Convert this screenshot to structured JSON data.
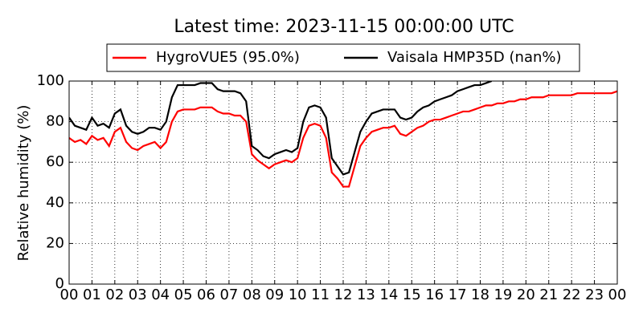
{
  "chart_data": {
    "type": "line",
    "title": "Latest time: 2023-11-15 00:00:00 UTC",
    "ylabel": "Relative humidity (%)",
    "x": [
      0,
      0.25,
      0.5,
      0.75,
      1,
      1.25,
      1.5,
      1.75,
      2,
      2.25,
      2.5,
      2.75,
      3,
      3.25,
      3.5,
      3.75,
      4,
      4.25,
      4.5,
      4.75,
      5,
      5.25,
      5.5,
      5.75,
      6,
      6.25,
      6.5,
      6.75,
      7,
      7.25,
      7.5,
      7.75,
      8,
      8.25,
      8.5,
      8.75,
      9,
      9.25,
      9.5,
      9.75,
      10,
      10.25,
      10.5,
      10.75,
      11,
      11.25,
      11.5,
      11.75,
      12,
      12.25,
      12.5,
      12.75,
      13,
      13.25,
      13.5,
      13.75,
      14,
      14.25,
      14.5,
      14.75,
      15,
      15.25,
      15.5,
      15.75,
      16,
      16.25,
      16.5,
      16.75,
      17,
      17.25,
      17.5,
      17.75,
      18,
      18.25,
      18.5,
      18.75,
      19,
      19.25,
      19.5,
      19.75,
      20,
      20.25,
      20.5,
      20.75,
      21,
      21.25,
      21.5,
      21.75,
      22,
      22.25,
      22.5,
      22.75,
      23,
      23.25,
      23.5,
      23.75,
      24
    ],
    "series": [
      {
        "name": "HygroVUE5 (95.0%)",
        "color": "#ff0000",
        "values": [
          72,
          70,
          71,
          69,
          73,
          71,
          72,
          68,
          75,
          77,
          70,
          67,
          66,
          68,
          69,
          70,
          67,
          70,
          80,
          85,
          86,
          86,
          86,
          87,
          87,
          87,
          85,
          84,
          84,
          83,
          83,
          80,
          64,
          61,
          59,
          57,
          59,
          60,
          61,
          60,
          62,
          72,
          78,
          79,
          78,
          72,
          55,
          52,
          48,
          48,
          58,
          68,
          72,
          75,
          76,
          77,
          77,
          78,
          74,
          73,
          75,
          77,
          78,
          80,
          81,
          81,
          82,
          83,
          84,
          85,
          85,
          86,
          87,
          88,
          88,
          89,
          89,
          90,
          90,
          91,
          91,
          92,
          92,
          92,
          93,
          93,
          93,
          93,
          93,
          94,
          94,
          94,
          94,
          94,
          94,
          94,
          95
        ]
      },
      {
        "name": "Vaisala HMP35D (nan%)",
        "color": "#000000",
        "values": [
          82,
          78,
          77,
          76,
          82,
          78,
          79,
          77,
          84,
          86,
          78,
          75,
          74,
          75,
          77,
          77,
          76,
          80,
          92,
          98,
          98,
          98,
          98,
          99,
          99,
          99,
          96,
          95,
          95,
          95,
          94,
          90,
          68,
          66,
          63,
          62,
          64,
          65,
          66,
          65,
          67,
          80,
          87,
          88,
          87,
          82,
          62,
          58,
          54,
          55,
          65,
          75,
          80,
          84,
          85,
          86,
          86,
          86,
          82,
          81,
          82,
          85,
          87,
          88,
          90,
          91,
          92,
          93,
          95,
          96,
          97,
          98,
          98,
          99,
          100,
          null,
          null,
          null,
          null,
          null,
          null,
          null,
          null,
          null,
          null,
          null,
          null,
          null,
          null,
          null,
          null,
          null,
          null,
          null,
          null,
          null,
          null
        ]
      }
    ],
    "xlim": [
      0,
      24
    ],
    "xticks": [
      {
        "value": 0,
        "label": "00"
      },
      {
        "value": 1,
        "label": "01"
      },
      {
        "value": 2,
        "label": "02"
      },
      {
        "value": 3,
        "label": "03"
      },
      {
        "value": 4,
        "label": "04"
      },
      {
        "value": 5,
        "label": "05"
      },
      {
        "value": 6,
        "label": "06"
      },
      {
        "value": 7,
        "label": "07"
      },
      {
        "value": 8,
        "label": "08"
      },
      {
        "value": 9,
        "label": "09"
      },
      {
        "value": 10,
        "label": "10"
      },
      {
        "value": 11,
        "label": "11"
      },
      {
        "value": 12,
        "label": "12"
      },
      {
        "value": 13,
        "label": "13"
      },
      {
        "value": 14,
        "label": "14"
      },
      {
        "value": 15,
        "label": "15"
      },
      {
        "value": 16,
        "label": "16"
      },
      {
        "value": 17,
        "label": "17"
      },
      {
        "value": 18,
        "label": "18"
      },
      {
        "value": 19,
        "label": "19"
      },
      {
        "value": 20,
        "label": "20"
      },
      {
        "value": 21,
        "label": "21"
      },
      {
        "value": 22,
        "label": "22"
      },
      {
        "value": 23,
        "label": "23"
      },
      {
        "value": 24,
        "label": "00"
      }
    ],
    "ylim": [
      0,
      100
    ],
    "yticks": [
      0,
      20,
      40,
      60,
      80,
      100
    ],
    "grid": true
  }
}
